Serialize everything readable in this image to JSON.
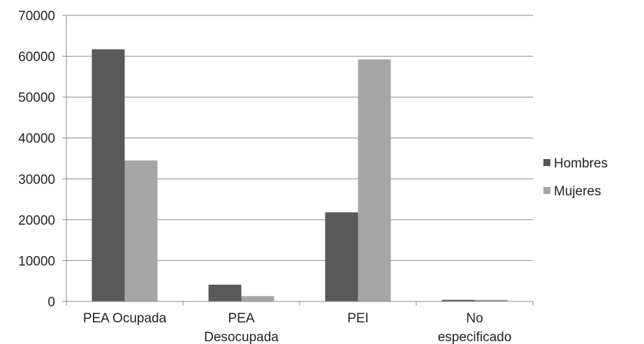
{
  "chart_data": {
    "type": "bar",
    "categories": [
      [
        "PEA Ocupada"
      ],
      [
        "PEA",
        "Desocupada"
      ],
      [
        "PEI"
      ],
      [
        "No",
        "especificado"
      ]
    ],
    "series": [
      {
        "name": "Hombres",
        "color": "#595959",
        "values": [
          61700,
          4100,
          21800,
          400
        ]
      },
      {
        "name": "Mujeres",
        "color": "#a6a6a6",
        "values": [
          34500,
          1300,
          59200,
          400
        ]
      }
    ],
    "ylim": [
      0,
      70000
    ],
    "yticks": [
      "0",
      "10000",
      "20000",
      "30000",
      "40000",
      "50000",
      "60000",
      "70000"
    ],
    "grid": true,
    "legend": "right"
  }
}
